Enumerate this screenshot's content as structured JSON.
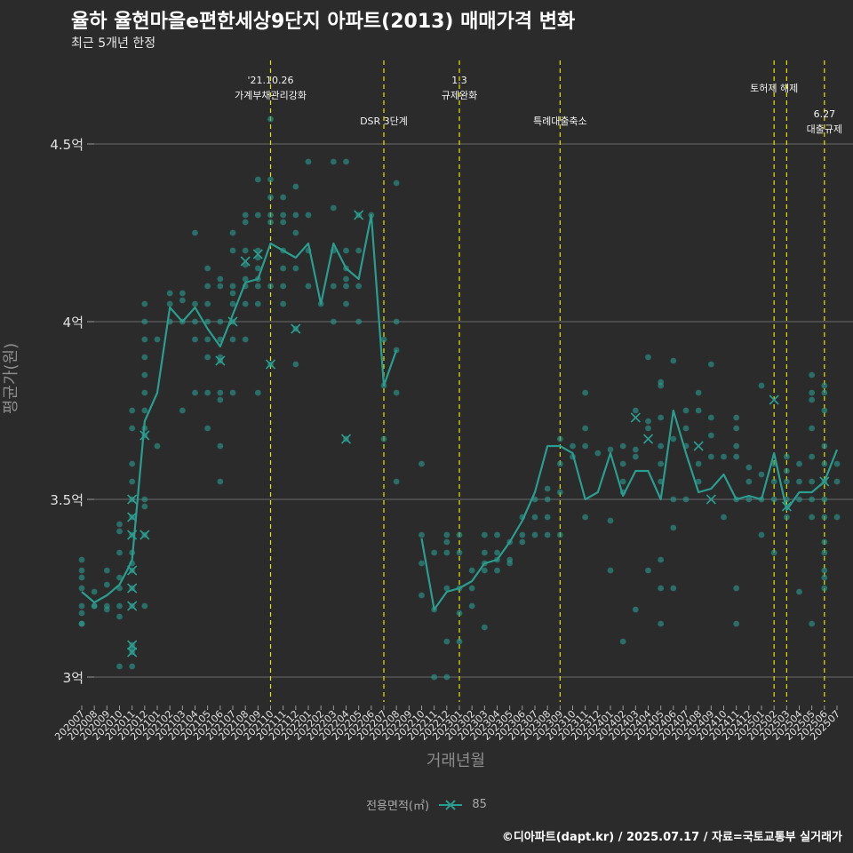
{
  "title": "율하 율현마을e편한세상9단지 아파트(2013) 매매가격 변화",
  "subtitle": "최근 5개년 한정",
  "caption": "©디아파트(dapt.kr) / 2025.07.17 / 자료=국토교통부 실거래가",
  "colors": {
    "background": "#2b2b2b",
    "series": "#2a9d8f",
    "event_line": "#e6e600",
    "grid": "#6b6b6b"
  },
  "chart_data": {
    "type": "line",
    "xlabel": "거래년월",
    "ylabel": "평균가(원)",
    "ylim": [
      2.93,
      4.75
    ],
    "yticks": [
      {
        "value": 3.0,
        "label": "3억"
      },
      {
        "value": 3.5,
        "label": "3.5억"
      },
      {
        "value": 4.0,
        "label": "4억"
      },
      {
        "value": 4.5,
        "label": "4.5억"
      }
    ],
    "categories": [
      "202007",
      "202008",
      "202009",
      "202010",
      "202011",
      "202012",
      "202101",
      "202102",
      "202103",
      "202104",
      "202105",
      "202106",
      "202107",
      "202108",
      "202109",
      "202110",
      "202111",
      "202112",
      "202201",
      "202202",
      "202203",
      "202204",
      "202205",
      "202206",
      "202207",
      "202208",
      "202209",
      "202210",
      "202211",
      "202212",
      "202301",
      "202302",
      "202303",
      "202304",
      "202305",
      "202306",
      "202307",
      "202308",
      "202309",
      "202310",
      "202311",
      "202312",
      "202401",
      "202402",
      "202403",
      "202404",
      "202405",
      "202406",
      "202407",
      "202408",
      "202409",
      "202410",
      "202411",
      "202412",
      "202501",
      "202502",
      "202503",
      "202504",
      "202505",
      "202506",
      "202507"
    ],
    "legend_title": "전용면적(㎡)",
    "series": [
      {
        "name": "85",
        "mean_points": [
          {
            "x": "202007",
            "y": 3.24
          },
          {
            "x": "202008",
            "y": 3.21
          },
          {
            "x": "202009",
            "y": 3.23
          },
          {
            "x": "202010",
            "y": 3.26
          },
          {
            "x": "202010b",
            "y": 3.3
          },
          {
            "x": "202011",
            "y": 3.33
          },
          {
            "x": "202012",
            "y": 3.72
          },
          {
            "x": "202101",
            "y": 3.8
          },
          {
            "x": "202102",
            "y": 4.04
          },
          {
            "x": "202103",
            "y": 4.0
          },
          {
            "x": "202104",
            "y": 4.04
          },
          {
            "x": "202105",
            "y": 3.98
          },
          {
            "x": "202106",
            "y": 3.93
          },
          {
            "x": "202107",
            "y": 4.02
          },
          {
            "x": "202108",
            "y": 4.11
          },
          {
            "x": "202109",
            "y": 4.12
          },
          {
            "x": "202110",
            "y": 4.22
          },
          {
            "x": "202111",
            "y": 4.2
          },
          {
            "x": "202112",
            "y": 4.18
          },
          {
            "x": "202201",
            "y": 4.22
          },
          {
            "x": "202202",
            "y": 4.05
          },
          {
            "x": "202203",
            "y": 4.22
          },
          {
            "x": "202204",
            "y": 4.15
          },
          {
            "x": "202205",
            "y": 4.12
          },
          {
            "x": "202206",
            "y": 4.3
          },
          {
            "x": "202207",
            "y": 3.82
          },
          {
            "x": "202208",
            "y": 3.92
          },
          {
            "x": "202210",
            "y": 3.39
          },
          {
            "x": "202211",
            "y": 3.19
          },
          {
            "x": "202212",
            "y": 3.24
          },
          {
            "x": "202301",
            "y": 3.25
          },
          {
            "x": "202302",
            "y": 3.27
          },
          {
            "x": "202303",
            "y": 3.32
          },
          {
            "x": "202304",
            "y": 3.33
          },
          {
            "x": "202305",
            "y": 3.38
          },
          {
            "x": "202306",
            "y": 3.44
          },
          {
            "x": "202307",
            "y": 3.52
          },
          {
            "x": "202308",
            "y": 3.65
          },
          {
            "x": "202309",
            "y": 3.65
          },
          {
            "x": "202310",
            "y": 3.63
          },
          {
            "x": "202311",
            "y": 3.5
          },
          {
            "x": "202312",
            "y": 3.52
          },
          {
            "x": "202401",
            "y": 3.63
          },
          {
            "x": "202402",
            "y": 3.51
          },
          {
            "x": "202403",
            "y": 3.58
          },
          {
            "x": "202404",
            "y": 3.58
          },
          {
            "x": "202405",
            "y": 3.5
          },
          {
            "x": "202406",
            "y": 3.75
          },
          {
            "x": "202407",
            "y": 3.63
          },
          {
            "x": "202408",
            "y": 3.52
          },
          {
            "x": "202409",
            "y": 3.53
          },
          {
            "x": "202410",
            "y": 3.57
          },
          {
            "x": "202411",
            "y": 3.5
          },
          {
            "x": "202412",
            "y": 3.51
          },
          {
            "x": "202501",
            "y": 3.5
          },
          {
            "x": "202502",
            "y": 3.63
          },
          {
            "x": "202503",
            "y": 3.47
          },
          {
            "x": "202504",
            "y": 3.52
          },
          {
            "x": "202505",
            "y": 3.52
          },
          {
            "x": "202506",
            "y": 3.55
          },
          {
            "x": "202507",
            "y": 3.64
          }
        ],
        "transactions": [
          [
            "202007",
            [
              3.33,
              3.3,
              3.28,
              3.25,
              3.2,
              3.18,
              3.15,
              3.15
            ]
          ],
          [
            "202008",
            [
              3.24,
              3.2,
              3.2
            ]
          ],
          [
            "202009",
            [
              3.3,
              3.26,
              3.2,
              3.19
            ]
          ],
          [
            "202010",
            [
              3.43,
              3.41,
              3.35,
              3.28,
              3.25,
              3.2,
              3.17,
              3.03
            ]
          ],
          [
            "202011",
            [
              3.75,
              3.7,
              3.6,
              3.55,
              3.5,
              3.45,
              3.4,
              3.35,
              3.32,
              3.3,
              3.25,
              3.2,
              3.09,
              3.08,
              3.07,
              3.03
            ]
          ],
          [
            "202012",
            [
              4.05,
              4.0,
              3.95,
              3.9,
              3.85,
              3.8,
              3.75,
              3.7,
              3.68,
              3.5,
              3.48,
              3.4,
              3.2
            ]
          ],
          [
            "202101",
            [
              3.95,
              3.65
            ]
          ],
          [
            "202102",
            [
              4.08,
              4.05,
              4.0
            ]
          ],
          [
            "202103",
            [
              4.08,
              4.06,
              4.0,
              3.75
            ]
          ],
          [
            "202104",
            [
              4.25,
              4.05,
              4.0,
              3.95,
              3.8
            ]
          ],
          [
            "202105",
            [
              4.15,
              4.1,
              4.05,
              4.0,
              3.95,
              3.9,
              3.8,
              3.7
            ]
          ],
          [
            "202106",
            [
              4.12,
              4.1,
              4.0,
              3.95,
              3.9,
              3.89,
              3.8,
              3.78,
              3.65,
              3.55
            ]
          ],
          [
            "202107",
            [
              4.25,
              4.2,
              4.1,
              4.08,
              4.05,
              4.0,
              3.95,
              3.8
            ]
          ],
          [
            "202108",
            [
              4.3,
              4.28,
              4.2,
              4.16,
              4.12,
              4.1,
              4.05,
              3.95
            ]
          ],
          [
            "202109",
            [
              4.4,
              4.3,
              4.2,
              4.18,
              4.15,
              4.12,
              4.1,
              4.05,
              3.8
            ]
          ],
          [
            "202110",
            [
              4.57,
              4.4,
              4.35,
              4.3,
              4.28,
              4.1,
              3.88
            ]
          ],
          [
            "202111",
            [
              4.35,
              4.3,
              4.28,
              4.2,
              4.15,
              4.1,
              4.05
            ]
          ],
          [
            "202112",
            [
              4.38,
              4.3,
              4.25,
              4.15,
              3.98,
              3.88
            ]
          ],
          [
            "202201",
            [
              4.45,
              4.3,
              4.2,
              4.1
            ]
          ],
          [
            "202202",
            [
              4.05
            ]
          ],
          [
            "202203",
            [
              4.45,
              4.32,
              4.2,
              4.1,
              4.0
            ]
          ],
          [
            "202204",
            [
              4.45,
              4.2,
              4.15,
              4.12,
              4.1,
              4.05,
              3.67
            ]
          ],
          [
            "202205",
            [
              4.3,
              4.2,
              4.1,
              4.0
            ]
          ],
          [
            "202206",
            [
              4.3
            ]
          ],
          [
            "202207",
            [
              3.95,
              3.82,
              3.67
            ]
          ],
          [
            "202208",
            [
              4.39,
              4.0,
              3.92,
              3.8,
              3.55
            ]
          ],
          [
            "202210",
            [
              3.6,
              3.4,
              3.32,
              3.23
            ]
          ],
          [
            "202211",
            [
              3.35,
              3.19,
              3.0
            ]
          ],
          [
            "202212",
            [
              3.4,
              3.38,
              3.35,
              3.25,
              3.1,
              3.0
            ]
          ],
          [
            "202301",
            [
              3.4,
              3.35,
              3.25,
              3.18,
              3.1
            ]
          ],
          [
            "202302",
            [
              3.3,
              3.25,
              3.2
            ]
          ],
          [
            "202303",
            [
              3.4,
              3.35,
              3.32,
              3.3,
              3.14
            ]
          ],
          [
            "202304",
            [
              3.4,
              3.35,
              3.33,
              3.3
            ]
          ],
          [
            "202305",
            [
              3.38,
              3.33,
              3.32
            ]
          ],
          [
            "202306",
            [
              3.45,
              3.4,
              3.38
            ]
          ],
          [
            "202307",
            [
              3.5,
              3.45,
              3.4
            ]
          ],
          [
            "202308",
            [
              3.53,
              3.5,
              3.45,
              3.4
            ]
          ],
          [
            "202309",
            [
              3.67,
              3.6,
              3.52,
              3.4
            ]
          ],
          [
            "202310",
            [
              3.65,
              3.62
            ]
          ],
          [
            "202311",
            [
              3.8,
              3.7,
              3.65,
              3.45
            ]
          ],
          [
            "202312",
            [
              3.63
            ]
          ],
          [
            "202401",
            [
              3.64,
              3.44,
              3.3
            ]
          ],
          [
            "202402",
            [
              3.65,
              3.6,
              3.55,
              3.52,
              3.1
            ]
          ],
          [
            "202403",
            [
              3.75,
              3.64,
              3.62,
              3.19
            ]
          ],
          [
            "202404",
            [
              3.9,
              3.72,
              3.7,
              3.3
            ]
          ],
          [
            "202405",
            [
              3.83,
              3.82,
              3.73,
              3.65,
              3.6,
              3.55,
              3.33,
              3.25,
              3.15
            ]
          ],
          [
            "202406",
            [
              3.89,
              3.67,
              3.5,
              3.42,
              3.25
            ]
          ],
          [
            "202407",
            [
              3.75,
              3.7,
              3.65,
              3.5
            ]
          ],
          [
            "202408",
            [
              3.8,
              3.75,
              3.6,
              3.55
            ]
          ],
          [
            "202409",
            [
              3.88,
              3.73,
              3.68,
              3.62
            ]
          ],
          [
            "202410",
            [
              3.62,
              3.45
            ]
          ],
          [
            "202411",
            [
              3.73,
              3.7,
              3.65,
              3.62,
              3.5,
              3.25,
              3.15
            ]
          ],
          [
            "202412",
            [
              3.59,
              3.55,
              3.5
            ]
          ],
          [
            "202501",
            [
              3.82,
              3.57,
              3.5,
              3.4
            ]
          ],
          [
            "202502",
            [
              3.6,
              3.55,
              3.5,
              3.35
            ]
          ],
          [
            "202503",
            [
              3.62,
              3.58,
              3.55,
              3.5,
              3.45
            ]
          ],
          [
            "202504",
            [
              3.6,
              3.55,
              3.5,
              3.24
            ]
          ],
          [
            "202505",
            [
              3.85,
              3.8,
              3.78,
              3.7,
              3.62,
              3.55,
              3.5,
              3.45,
              3.15
            ]
          ],
          [
            "202506",
            [
              3.82,
              3.8,
              3.75,
              3.65,
              3.6,
              3.55,
              3.5,
              3.45,
              3.38,
              3.35,
              3.3,
              3.28,
              3.25
            ]
          ],
          [
            "202507",
            [
              3.6,
              3.55,
              3.45
            ]
          ]
        ],
        "x_marks": [
          [
            "202011",
            3.5
          ],
          [
            "202011",
            3.45
          ],
          [
            "202011",
            3.4
          ],
          [
            "202011",
            3.3
          ],
          [
            "202011",
            3.25
          ],
          [
            "202011",
            3.2
          ],
          [
            "202011",
            3.09
          ],
          [
            "202011",
            3.07
          ],
          [
            "202012",
            3.68
          ],
          [
            "202012",
            3.4
          ],
          [
            "202106",
            3.89
          ],
          [
            "202107",
            4.0
          ],
          [
            "202108",
            4.17
          ],
          [
            "202109",
            4.19
          ],
          [
            "202110",
            3.88
          ],
          [
            "202112",
            3.98
          ],
          [
            "202204",
            3.67
          ],
          [
            "202205",
            4.3
          ],
          [
            "202403",
            3.73
          ],
          [
            "202404",
            3.67
          ],
          [
            "202408",
            3.65
          ],
          [
            "202409",
            3.5
          ],
          [
            "202502",
            3.78
          ],
          [
            "202503",
            3.48
          ],
          [
            "202506",
            3.55
          ]
        ]
      }
    ],
    "events": [
      {
        "x": "202110",
        "label": "'21.10.26\n가계부채관리강화",
        "tier": 1
      },
      {
        "x": "202207",
        "label": "DSR 3단계",
        "tier": 2
      },
      {
        "x": "202301",
        "label": "1.3\n규제완화",
        "tier": 1
      },
      {
        "x": "202309",
        "label": "특례대출축소",
        "tier": 2
      },
      {
        "x": "202502",
        "label": "토허제 해제",
        "tier": 1
      },
      {
        "x": "202503",
        "label": "",
        "tier": 1
      },
      {
        "x": "202506",
        "label": "6.27\n대출규제",
        "tier": 3
      }
    ]
  }
}
